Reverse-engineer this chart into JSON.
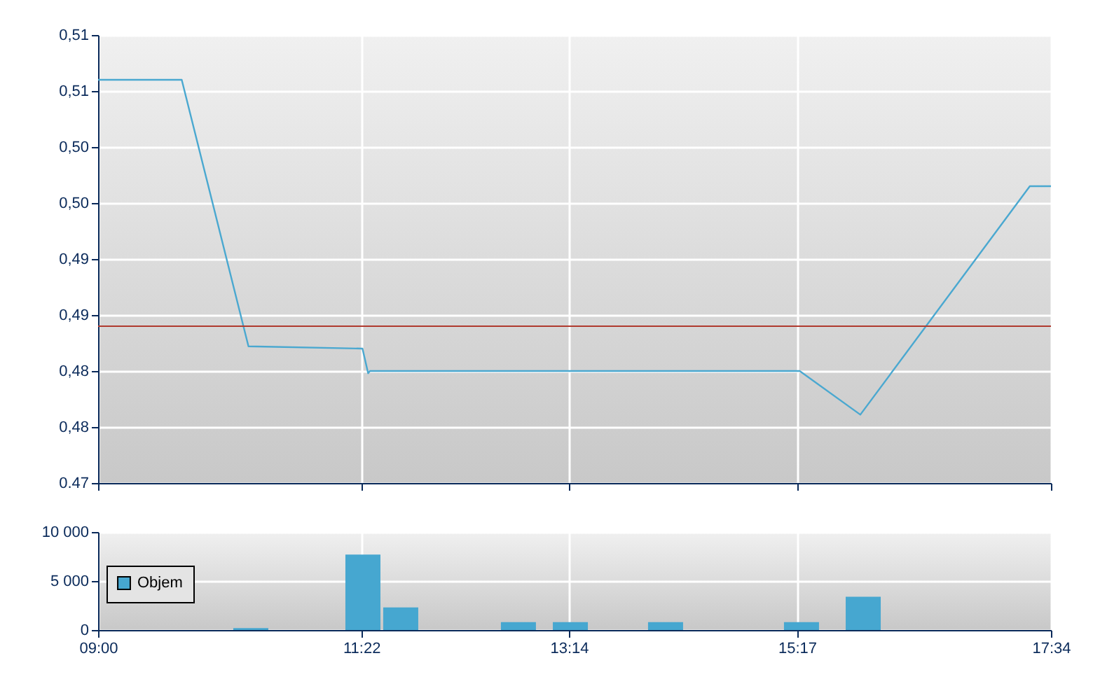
{
  "chart_data": [
    {
      "type": "line",
      "x": [
        9,
        9.752,
        10.352,
        11.377,
        11.428,
        11.444,
        15.308,
        15.853,
        17.377,
        17.567
      ],
      "series": [
        {
          "color": "#4aa8d0",
          "values": [
            0.506,
            0.506,
            0.4822,
            0.482,
            0.4798,
            0.48,
            0.48,
            0.4761,
            0.4965,
            0.4965
          ]
        }
      ],
      "xlim": [
        9,
        17.567
      ],
      "xticks": [
        {
          "value": 9,
          "label": null
        },
        {
          "value": 11.3667,
          "label": null
        },
        {
          "value": 13.2333,
          "label": null
        },
        {
          "value": 15.2833,
          "label": null
        },
        {
          "value": 17.567,
          "label": null
        }
      ],
      "ylim": [
        0.47,
        0.51
      ],
      "yticks": [
        {
          "value": 0.47,
          "label": "0.47"
        },
        {
          "value": 0.475,
          "label": "0,48"
        },
        {
          "value": 0.48,
          "label": "0,48"
        },
        {
          "value": 0.485,
          "label": "0,49"
        },
        {
          "value": 0.49,
          "label": "0,49"
        },
        {
          "value": 0.495,
          "label": "0,50"
        },
        {
          "value": 0.5,
          "label": "0,50"
        },
        {
          "value": 0.505,
          "label": "0,51"
        },
        {
          "value": 0.51,
          "label": "0,51"
        }
      ],
      "ref_lines": [
        {
          "axis": "y",
          "value": 0.484,
          "color": "#b03a2e"
        }
      ],
      "grid": true,
      "tick_labels": "y"
    },
    {
      "type": "bar",
      "x": [
        10.373,
        11.381,
        11.721,
        12.779,
        13.246,
        14.102,
        15.324,
        15.879
      ],
      "series": [
        {
          "name": "Objem",
          "color": "#46a7d0",
          "values": [
            200,
            7700,
            2300,
            800,
            800,
            800,
            800,
            3400
          ]
        }
      ],
      "xlim": [
        9,
        17.567
      ],
      "xticks": [
        {
          "value": 9,
          "label": "09:00"
        },
        {
          "value": 11.3667,
          "label": "11:22"
        },
        {
          "value": 13.2333,
          "label": "13:14"
        },
        {
          "value": 15.2833,
          "label": "15:17"
        },
        {
          "value": 17.567,
          "label": "17:34"
        }
      ],
      "ylim": [
        0,
        10000
      ],
      "yticks": [
        0,
        {
          "value": 5000,
          "label": "5 000"
        },
        {
          "value": 10000,
          "label": "10 000"
        }
      ],
      "grid": true,
      "legend": "left"
    }
  ]
}
